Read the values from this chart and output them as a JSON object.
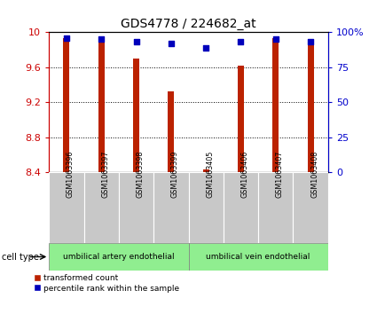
{
  "title": "GDS4778 / 224682_at",
  "samples": [
    "GSM1063396",
    "GSM1063397",
    "GSM1063398",
    "GSM1063399",
    "GSM1063405",
    "GSM1063406",
    "GSM1063407",
    "GSM1063408"
  ],
  "red_values": [
    9.93,
    9.91,
    9.7,
    9.32,
    8.43,
    9.62,
    9.93,
    9.92
  ],
  "blue_values": [
    96,
    95,
    93,
    92,
    89,
    93,
    95,
    93
  ],
  "ylim_left": [
    8.4,
    10.0
  ],
  "ylim_right": [
    0,
    100
  ],
  "yticks_left": [
    8.4,
    8.8,
    9.2,
    9.6,
    10.0
  ],
  "yticks_right": [
    0,
    25,
    50,
    75,
    100
  ],
  "ytick_labels_left": [
    "8.4",
    "8.8",
    "9.2",
    "9.6",
    "10"
  ],
  "ytick_labels_right": [
    "0",
    "25",
    "50",
    "75",
    "100%"
  ],
  "cell_type_groups": [
    {
      "label": "umbilical artery endothelial",
      "indices": [
        0,
        1,
        2,
        3
      ],
      "color": "#90EE90"
    },
    {
      "label": "umbilical vein endothelial",
      "indices": [
        4,
        5,
        6,
        7
      ],
      "color": "#90EE90"
    }
  ],
  "bar_color": "#BB2200",
  "dot_color": "#0000BB",
  "bg_color": "#C8C8C8",
  "legend_red": "transformed count",
  "legend_blue": "percentile rank within the sample",
  "cell_type_label": "cell type",
  "left_axis_color": "#CC0000",
  "right_axis_color": "#0000CC",
  "bar_width": 0.18
}
